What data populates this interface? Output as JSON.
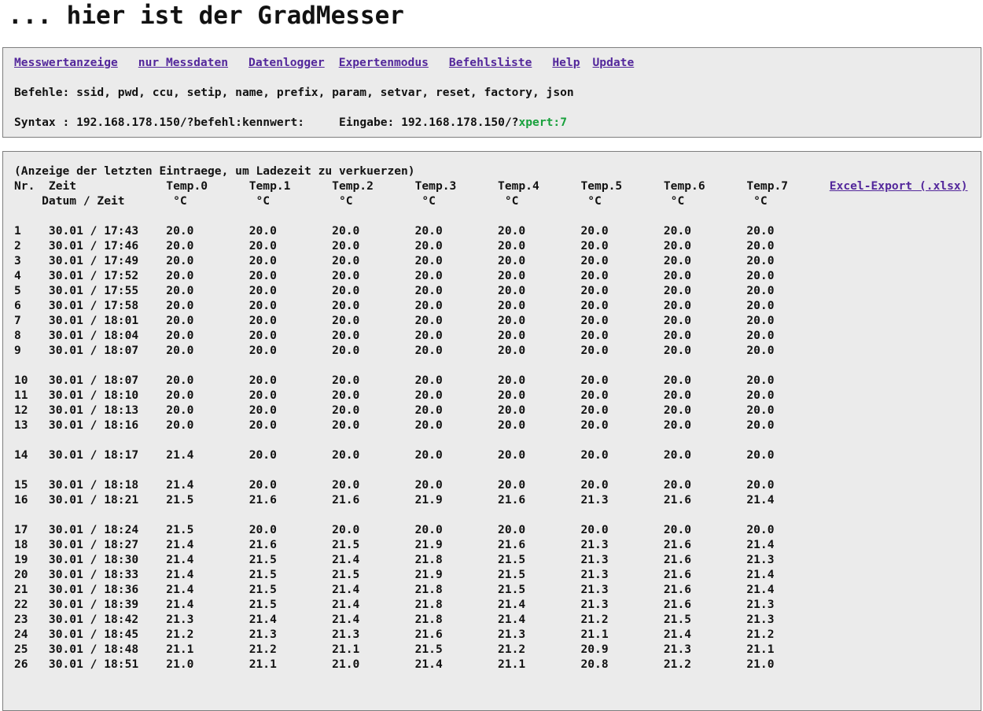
{
  "page": {
    "title": "... hier ist der GradMesser"
  },
  "colors": {
    "link": "#53279b",
    "panel_background": "#ebebeb",
    "panel_border": "#7e7e7e",
    "eingabe_value_green": "#18a13c"
  },
  "nav": {
    "items": [
      {
        "label": "Messwertanzeige"
      },
      {
        "label": "nur Messdaten"
      },
      {
        "label": "Datenlogger"
      },
      {
        "label": "Expertenmodus"
      },
      {
        "label": "Befehlsliste"
      },
      {
        "label": "Help"
      },
      {
        "label": "Update"
      }
    ]
  },
  "commands": {
    "label": "Befehle: ssid, pwd, ccu, setip, name, prefix, param, setvar, reset, factory, json"
  },
  "syntax": {
    "syntax_label": "Syntax : 192.168.178.150/?befehl:kennwert:",
    "eingabe_label": "Eingabe: 192.168.178.150/?",
    "eingabe_value": "xpert:7"
  },
  "table": {
    "note": "(Anzeige der letzten Eintraege, um Ladezeit zu verkuerzen)",
    "nr_header": "Nr.",
    "zeit_header": "Zeit",
    "zeit_subheader": "Datum / Zeit",
    "temp_headers": [
      "Temp.0",
      "Temp.1",
      "Temp.2",
      "Temp.3",
      "Temp.4",
      "Temp.5",
      "Temp.6",
      "Temp.7"
    ],
    "unit": "°C",
    "export_link": "Excel-Export (.xlsx)",
    "row_blocks": [
      [
        {
          "nr": "1",
          "date": "30.01",
          "time": "17:43",
          "temps": [
            "20.0",
            "20.0",
            "20.0",
            "20.0",
            "20.0",
            "20.0",
            "20.0",
            "20.0"
          ]
        },
        {
          "nr": "2",
          "date": "30.01",
          "time": "17:46",
          "temps": [
            "20.0",
            "20.0",
            "20.0",
            "20.0",
            "20.0",
            "20.0",
            "20.0",
            "20.0"
          ]
        },
        {
          "nr": "3",
          "date": "30.01",
          "time": "17:49",
          "temps": [
            "20.0",
            "20.0",
            "20.0",
            "20.0",
            "20.0",
            "20.0",
            "20.0",
            "20.0"
          ]
        },
        {
          "nr": "4",
          "date": "30.01",
          "time": "17:52",
          "temps": [
            "20.0",
            "20.0",
            "20.0",
            "20.0",
            "20.0",
            "20.0",
            "20.0",
            "20.0"
          ]
        },
        {
          "nr": "5",
          "date": "30.01",
          "time": "17:55",
          "temps": [
            "20.0",
            "20.0",
            "20.0",
            "20.0",
            "20.0",
            "20.0",
            "20.0",
            "20.0"
          ]
        },
        {
          "nr": "6",
          "date": "30.01",
          "time": "17:58",
          "temps": [
            "20.0",
            "20.0",
            "20.0",
            "20.0",
            "20.0",
            "20.0",
            "20.0",
            "20.0"
          ]
        },
        {
          "nr": "7",
          "date": "30.01",
          "time": "18:01",
          "temps": [
            "20.0",
            "20.0",
            "20.0",
            "20.0",
            "20.0",
            "20.0",
            "20.0",
            "20.0"
          ]
        },
        {
          "nr": "8",
          "date": "30.01",
          "time": "18:04",
          "temps": [
            "20.0",
            "20.0",
            "20.0",
            "20.0",
            "20.0",
            "20.0",
            "20.0",
            "20.0"
          ]
        },
        {
          "nr": "9",
          "date": "30.01",
          "time": "18:07",
          "temps": [
            "20.0",
            "20.0",
            "20.0",
            "20.0",
            "20.0",
            "20.0",
            "20.0",
            "20.0"
          ]
        }
      ],
      [
        {
          "nr": "10",
          "date": "30.01",
          "time": "18:07",
          "temps": [
            "20.0",
            "20.0",
            "20.0",
            "20.0",
            "20.0",
            "20.0",
            "20.0",
            "20.0"
          ]
        },
        {
          "nr": "11",
          "date": "30.01",
          "time": "18:10",
          "temps": [
            "20.0",
            "20.0",
            "20.0",
            "20.0",
            "20.0",
            "20.0",
            "20.0",
            "20.0"
          ]
        },
        {
          "nr": "12",
          "date": "30.01",
          "time": "18:13",
          "temps": [
            "20.0",
            "20.0",
            "20.0",
            "20.0",
            "20.0",
            "20.0",
            "20.0",
            "20.0"
          ]
        },
        {
          "nr": "13",
          "date": "30.01",
          "time": "18:16",
          "temps": [
            "20.0",
            "20.0",
            "20.0",
            "20.0",
            "20.0",
            "20.0",
            "20.0",
            "20.0"
          ]
        }
      ],
      [
        {
          "nr": "14",
          "date": "30.01",
          "time": "18:17",
          "temps": [
            "21.4",
            "20.0",
            "20.0",
            "20.0",
            "20.0",
            "20.0",
            "20.0",
            "20.0"
          ]
        }
      ],
      [
        {
          "nr": "15",
          "date": "30.01",
          "time": "18:18",
          "temps": [
            "21.4",
            "20.0",
            "20.0",
            "20.0",
            "20.0",
            "20.0",
            "20.0",
            "20.0"
          ]
        },
        {
          "nr": "16",
          "date": "30.01",
          "time": "18:21",
          "temps": [
            "21.5",
            "21.6",
            "21.6",
            "21.9",
            "21.6",
            "21.3",
            "21.6",
            "21.4"
          ]
        }
      ],
      [
        {
          "nr": "17",
          "date": "30.01",
          "time": "18:24",
          "temps": [
            "21.5",
            "20.0",
            "20.0",
            "20.0",
            "20.0",
            "20.0",
            "20.0",
            "20.0"
          ]
        },
        {
          "nr": "18",
          "date": "30.01",
          "time": "18:27",
          "temps": [
            "21.4",
            "21.6",
            "21.5",
            "21.9",
            "21.6",
            "21.3",
            "21.6",
            "21.4"
          ]
        },
        {
          "nr": "19",
          "date": "30.01",
          "time": "18:30",
          "temps": [
            "21.4",
            "21.5",
            "21.4",
            "21.8",
            "21.5",
            "21.3",
            "21.6",
            "21.3"
          ]
        },
        {
          "nr": "20",
          "date": "30.01",
          "time": "18:33",
          "temps": [
            "21.4",
            "21.5",
            "21.5",
            "21.9",
            "21.5",
            "21.3",
            "21.6",
            "21.4"
          ]
        },
        {
          "nr": "21",
          "date": "30.01",
          "time": "18:36",
          "temps": [
            "21.4",
            "21.5",
            "21.4",
            "21.8",
            "21.5",
            "21.3",
            "21.6",
            "21.4"
          ]
        },
        {
          "nr": "22",
          "date": "30.01",
          "time": "18:39",
          "temps": [
            "21.4",
            "21.5",
            "21.4",
            "21.8",
            "21.4",
            "21.3",
            "21.6",
            "21.3"
          ]
        },
        {
          "nr": "23",
          "date": "30.01",
          "time": "18:42",
          "temps": [
            "21.3",
            "21.4",
            "21.4",
            "21.8",
            "21.4",
            "21.2",
            "21.5",
            "21.3"
          ]
        },
        {
          "nr": "24",
          "date": "30.01",
          "time": "18:45",
          "temps": [
            "21.2",
            "21.3",
            "21.3",
            "21.6",
            "21.3",
            "21.1",
            "21.4",
            "21.2"
          ]
        },
        {
          "nr": "25",
          "date": "30.01",
          "time": "18:48",
          "temps": [
            "21.1",
            "21.2",
            "21.1",
            "21.5",
            "21.2",
            "20.9",
            "21.3",
            "21.1"
          ]
        },
        {
          "nr": "26",
          "date": "30.01",
          "time": "18:51",
          "temps": [
            "21.0",
            "21.1",
            "21.0",
            "21.4",
            "21.1",
            "20.8",
            "21.2",
            "21.0"
          ]
        }
      ]
    ]
  }
}
